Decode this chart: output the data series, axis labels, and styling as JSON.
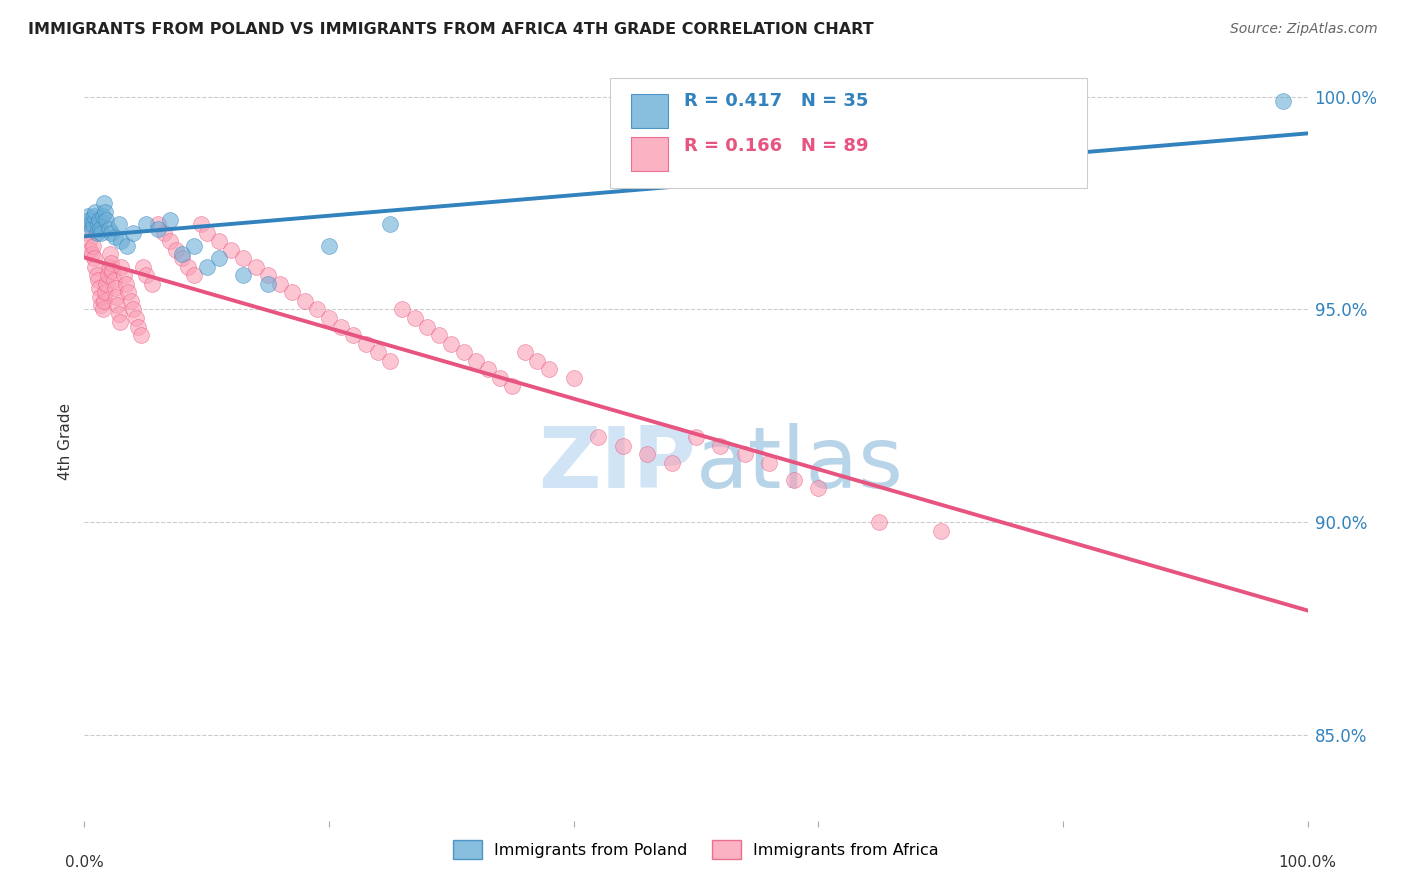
{
  "title": "IMMIGRANTS FROM POLAND VS IMMIGRANTS FROM AFRICA 4TH GRADE CORRELATION CHART",
  "source": "Source: ZipAtlas.com",
  "ylabel": "4th Grade",
  "ytick_labels": [
    "85.0%",
    "90.0%",
    "95.0%",
    "100.0%"
  ],
  "ytick_values": [
    0.85,
    0.9,
    0.95,
    1.0
  ],
  "legend_label1": "Immigrants from Poland",
  "legend_label2": "Immigrants from Africa",
  "R1": 0.417,
  "N1": 35,
  "R2": 0.166,
  "N2": 89,
  "color_poland": "#6baed6",
  "color_africa": "#fa9fb5",
  "color_poland_line": "#3182bd",
  "color_africa_line": "#e75480",
  "color_poland_text": "#3182bd",
  "color_africa_text": "#e75480",
  "watermark_color": "#d0e4f5",
  "background_color": "#ffffff",
  "poland_x": [
    0.003,
    0.004,
    0.005,
    0.006,
    0.007,
    0.008,
    0.009,
    0.01,
    0.011,
    0.012,
    0.013,
    0.014,
    0.015,
    0.016,
    0.017,
    0.018,
    0.02,
    0.022,
    0.025,
    0.028,
    0.03,
    0.035,
    0.04,
    0.05,
    0.06,
    0.07,
    0.08,
    0.09,
    0.1,
    0.11,
    0.13,
    0.15,
    0.2,
    0.25,
    0.98
  ],
  "poland_y": [
    0.972,
    0.971,
    0.97,
    0.969,
    0.97,
    0.972,
    0.973,
    0.968,
    0.97,
    0.971,
    0.969,
    0.968,
    0.972,
    0.975,
    0.973,
    0.971,
    0.969,
    0.968,
    0.967,
    0.97,
    0.966,
    0.965,
    0.968,
    0.97,
    0.969,
    0.971,
    0.963,
    0.965,
    0.96,
    0.962,
    0.958,
    0.956,
    0.965,
    0.97,
    0.999
  ],
  "africa_x": [
    0.003,
    0.004,
    0.005,
    0.006,
    0.007,
    0.008,
    0.009,
    0.01,
    0.011,
    0.012,
    0.013,
    0.014,
    0.015,
    0.016,
    0.017,
    0.018,
    0.019,
    0.02,
    0.021,
    0.022,
    0.023,
    0.024,
    0.025,
    0.026,
    0.027,
    0.028,
    0.029,
    0.03,
    0.032,
    0.034,
    0.036,
    0.038,
    0.04,
    0.042,
    0.044,
    0.046,
    0.048,
    0.05,
    0.055,
    0.06,
    0.065,
    0.07,
    0.075,
    0.08,
    0.085,
    0.09,
    0.095,
    0.1,
    0.11,
    0.12,
    0.13,
    0.14,
    0.15,
    0.16,
    0.17,
    0.18,
    0.19,
    0.2,
    0.21,
    0.22,
    0.23,
    0.24,
    0.25,
    0.26,
    0.27,
    0.28,
    0.29,
    0.3,
    0.31,
    0.32,
    0.33,
    0.34,
    0.35,
    0.36,
    0.37,
    0.38,
    0.4,
    0.42,
    0.44,
    0.46,
    0.48,
    0.5,
    0.52,
    0.54,
    0.56,
    0.58,
    0.6,
    0.65,
    0.7
  ],
  "africa_y": [
    0.968,
    0.966,
    0.964,
    0.963,
    0.965,
    0.962,
    0.96,
    0.958,
    0.957,
    0.955,
    0.953,
    0.951,
    0.95,
    0.952,
    0.954,
    0.956,
    0.958,
    0.96,
    0.963,
    0.961,
    0.959,
    0.957,
    0.955,
    0.953,
    0.951,
    0.949,
    0.947,
    0.96,
    0.958,
    0.956,
    0.954,
    0.952,
    0.95,
    0.948,
    0.946,
    0.944,
    0.96,
    0.958,
    0.956,
    0.97,
    0.968,
    0.966,
    0.964,
    0.962,
    0.96,
    0.958,
    0.97,
    0.968,
    0.966,
    0.964,
    0.962,
    0.96,
    0.958,
    0.956,
    0.954,
    0.952,
    0.95,
    0.948,
    0.946,
    0.944,
    0.942,
    0.94,
    0.938,
    0.95,
    0.948,
    0.946,
    0.944,
    0.942,
    0.94,
    0.938,
    0.936,
    0.934,
    0.932,
    0.94,
    0.938,
    0.936,
    0.934,
    0.92,
    0.918,
    0.916,
    0.914,
    0.92,
    0.918,
    0.916,
    0.914,
    0.91,
    0.908,
    0.9,
    0.898
  ]
}
